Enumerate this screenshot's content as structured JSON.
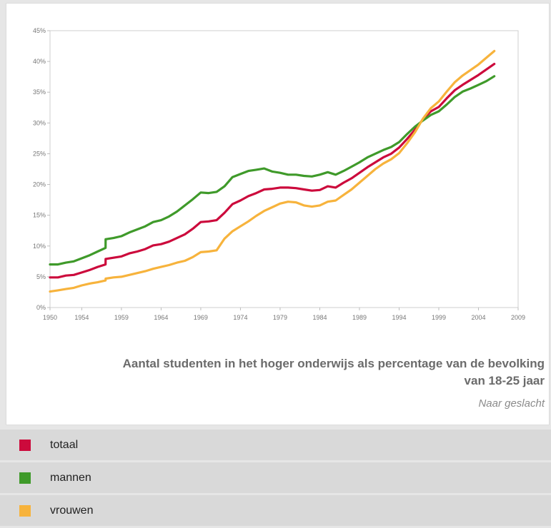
{
  "chart_data": {
    "type": "line",
    "title": "Aantal studenten in het hoger onderwijs als percentage van de bevolking van 18-25 jaar",
    "title_lines": [
      "Aantal studenten in het hoger onderwijs als percentage van de bevolking",
      "van 18-25 jaar"
    ],
    "subtitle": "Naar geslacht",
    "xlim": [
      1950,
      2009
    ],
    "ylim": [
      0,
      45
    ],
    "x_ticks": [
      "1950",
      "1954",
      "1959",
      "1964",
      "1969",
      "1974",
      "1979",
      "1984",
      "1989",
      "1994",
      "1999",
      "2004",
      "2009"
    ],
    "y_ticks": [
      "0%",
      "5%",
      "10%",
      "15%",
      "20%",
      "25%",
      "30%",
      "35%",
      "40%",
      "45%"
    ],
    "legend_placement": "bottom",
    "series": [
      {
        "name": "totaal",
        "color": "#cc0a3c",
        "points": [
          [
            1950,
            4.9
          ],
          [
            1951,
            4.9
          ],
          [
            1952,
            5.2
          ],
          [
            1953,
            5.3
          ],
          [
            1954,
            5.7
          ],
          [
            1955,
            6.1
          ],
          [
            1956,
            6.6
          ],
          [
            1957,
            7.0
          ],
          [
            1957.01,
            7.9
          ],
          [
            1958,
            8.1
          ],
          [
            1959,
            8.3
          ],
          [
            1960,
            8.8
          ],
          [
            1961,
            9.1
          ],
          [
            1962,
            9.5
          ],
          [
            1963,
            10.1
          ],
          [
            1964,
            10.3
          ],
          [
            1965,
            10.7
          ],
          [
            1966,
            11.3
          ],
          [
            1967,
            11.9
          ],
          [
            1968,
            12.8
          ],
          [
            1969,
            13.9
          ],
          [
            1970,
            14.0
          ],
          [
            1971,
            14.2
          ],
          [
            1972,
            15.4
          ],
          [
            1973,
            16.8
          ],
          [
            1974,
            17.4
          ],
          [
            1975,
            18.1
          ],
          [
            1976,
            18.6
          ],
          [
            1977,
            19.2
          ],
          [
            1978,
            19.3
          ],
          [
            1979,
            19.5
          ],
          [
            1980,
            19.5
          ],
          [
            1981,
            19.4
          ],
          [
            1982,
            19.2
          ],
          [
            1983,
            19.0
          ],
          [
            1984,
            19.1
          ],
          [
            1985,
            19.7
          ],
          [
            1986,
            19.5
          ],
          [
            1987,
            20.3
          ],
          [
            1988,
            21.0
          ],
          [
            1989,
            21.9
          ],
          [
            1990,
            22.8
          ],
          [
            1991,
            23.6
          ],
          [
            1992,
            24.4
          ],
          [
            1993,
            25.0
          ],
          [
            1994,
            26.0
          ],
          [
            1995,
            27.4
          ],
          [
            1996,
            28.9
          ],
          [
            1997,
            30.6
          ],
          [
            1998,
            31.9
          ],
          [
            1999,
            32.6
          ],
          [
            2000,
            34.0
          ],
          [
            2001,
            35.3
          ],
          [
            2002,
            36.2
          ],
          [
            2003,
            37.0
          ],
          [
            2004,
            37.8
          ],
          [
            2005,
            38.7
          ],
          [
            2006,
            39.6
          ]
        ]
      },
      {
        "name": "mannen",
        "color": "#3f9a2a",
        "points": [
          [
            1950,
            7.0
          ],
          [
            1951,
            7.0
          ],
          [
            1952,
            7.3
          ],
          [
            1953,
            7.5
          ],
          [
            1954,
            8.0
          ],
          [
            1955,
            8.5
          ],
          [
            1956,
            9.1
          ],
          [
            1957,
            9.7
          ],
          [
            1957.01,
            11.1
          ],
          [
            1958,
            11.3
          ],
          [
            1959,
            11.6
          ],
          [
            1960,
            12.2
          ],
          [
            1961,
            12.7
          ],
          [
            1962,
            13.2
          ],
          [
            1963,
            13.9
          ],
          [
            1964,
            14.2
          ],
          [
            1965,
            14.8
          ],
          [
            1966,
            15.6
          ],
          [
            1967,
            16.6
          ],
          [
            1968,
            17.6
          ],
          [
            1969,
            18.7
          ],
          [
            1970,
            18.6
          ],
          [
            1971,
            18.8
          ],
          [
            1972,
            19.7
          ],
          [
            1973,
            21.2
          ],
          [
            1974,
            21.7
          ],
          [
            1975,
            22.2
          ],
          [
            1976,
            22.4
          ],
          [
            1977,
            22.6
          ],
          [
            1978,
            22.1
          ],
          [
            1979,
            21.9
          ],
          [
            1980,
            21.6
          ],
          [
            1981,
            21.6
          ],
          [
            1982,
            21.4
          ],
          [
            1983,
            21.3
          ],
          [
            1984,
            21.6
          ],
          [
            1985,
            22.0
          ],
          [
            1986,
            21.6
          ],
          [
            1987,
            22.2
          ],
          [
            1988,
            22.9
          ],
          [
            1989,
            23.6
          ],
          [
            1990,
            24.4
          ],
          [
            1991,
            25.0
          ],
          [
            1992,
            25.6
          ],
          [
            1993,
            26.1
          ],
          [
            1994,
            26.9
          ],
          [
            1995,
            28.2
          ],
          [
            1996,
            29.4
          ],
          [
            1997,
            30.4
          ],
          [
            1998,
            31.3
          ],
          [
            1999,
            31.9
          ],
          [
            2000,
            33.0
          ],
          [
            2001,
            34.2
          ],
          [
            2002,
            35.1
          ],
          [
            2003,
            35.6
          ],
          [
            2004,
            36.2
          ],
          [
            2005,
            36.8
          ],
          [
            2006,
            37.6
          ]
        ]
      },
      {
        "name": "vrouwen",
        "color": "#f7b33c",
        "points": [
          [
            1950,
            2.6
          ],
          [
            1951,
            2.8
          ],
          [
            1952,
            3.0
          ],
          [
            1953,
            3.2
          ],
          [
            1954,
            3.6
          ],
          [
            1955,
            3.9
          ],
          [
            1956,
            4.1
          ],
          [
            1957,
            4.4
          ],
          [
            1957.01,
            4.7
          ],
          [
            1958,
            4.9
          ],
          [
            1959,
            5.0
          ],
          [
            1960,
            5.3
          ],
          [
            1961,
            5.6
          ],
          [
            1962,
            5.9
          ],
          [
            1963,
            6.3
          ],
          [
            1964,
            6.6
          ],
          [
            1965,
            6.9
          ],
          [
            1966,
            7.3
          ],
          [
            1967,
            7.6
          ],
          [
            1968,
            8.2
          ],
          [
            1969,
            9.0
          ],
          [
            1970,
            9.1
          ],
          [
            1971,
            9.3
          ],
          [
            1972,
            11.2
          ],
          [
            1973,
            12.4
          ],
          [
            1974,
            13.2
          ],
          [
            1975,
            14.0
          ],
          [
            1976,
            14.9
          ],
          [
            1977,
            15.7
          ],
          [
            1978,
            16.3
          ],
          [
            1979,
            16.9
          ],
          [
            1980,
            17.2
          ],
          [
            1981,
            17.1
          ],
          [
            1982,
            16.6
          ],
          [
            1983,
            16.4
          ],
          [
            1984,
            16.6
          ],
          [
            1985,
            17.2
          ],
          [
            1986,
            17.4
          ],
          [
            1987,
            18.3
          ],
          [
            1988,
            19.2
          ],
          [
            1989,
            20.3
          ],
          [
            1990,
            21.4
          ],
          [
            1991,
            22.5
          ],
          [
            1992,
            23.4
          ],
          [
            1993,
            24.1
          ],
          [
            1994,
            25.1
          ],
          [
            1995,
            26.7
          ],
          [
            1996,
            28.5
          ],
          [
            1997,
            30.7
          ],
          [
            1998,
            32.4
          ],
          [
            1999,
            33.5
          ],
          [
            2000,
            35.1
          ],
          [
            2001,
            36.6
          ],
          [
            2002,
            37.7
          ],
          [
            2003,
            38.6
          ],
          [
            2004,
            39.5
          ],
          [
            2005,
            40.6
          ],
          [
            2006,
            41.7
          ]
        ]
      }
    ]
  }
}
